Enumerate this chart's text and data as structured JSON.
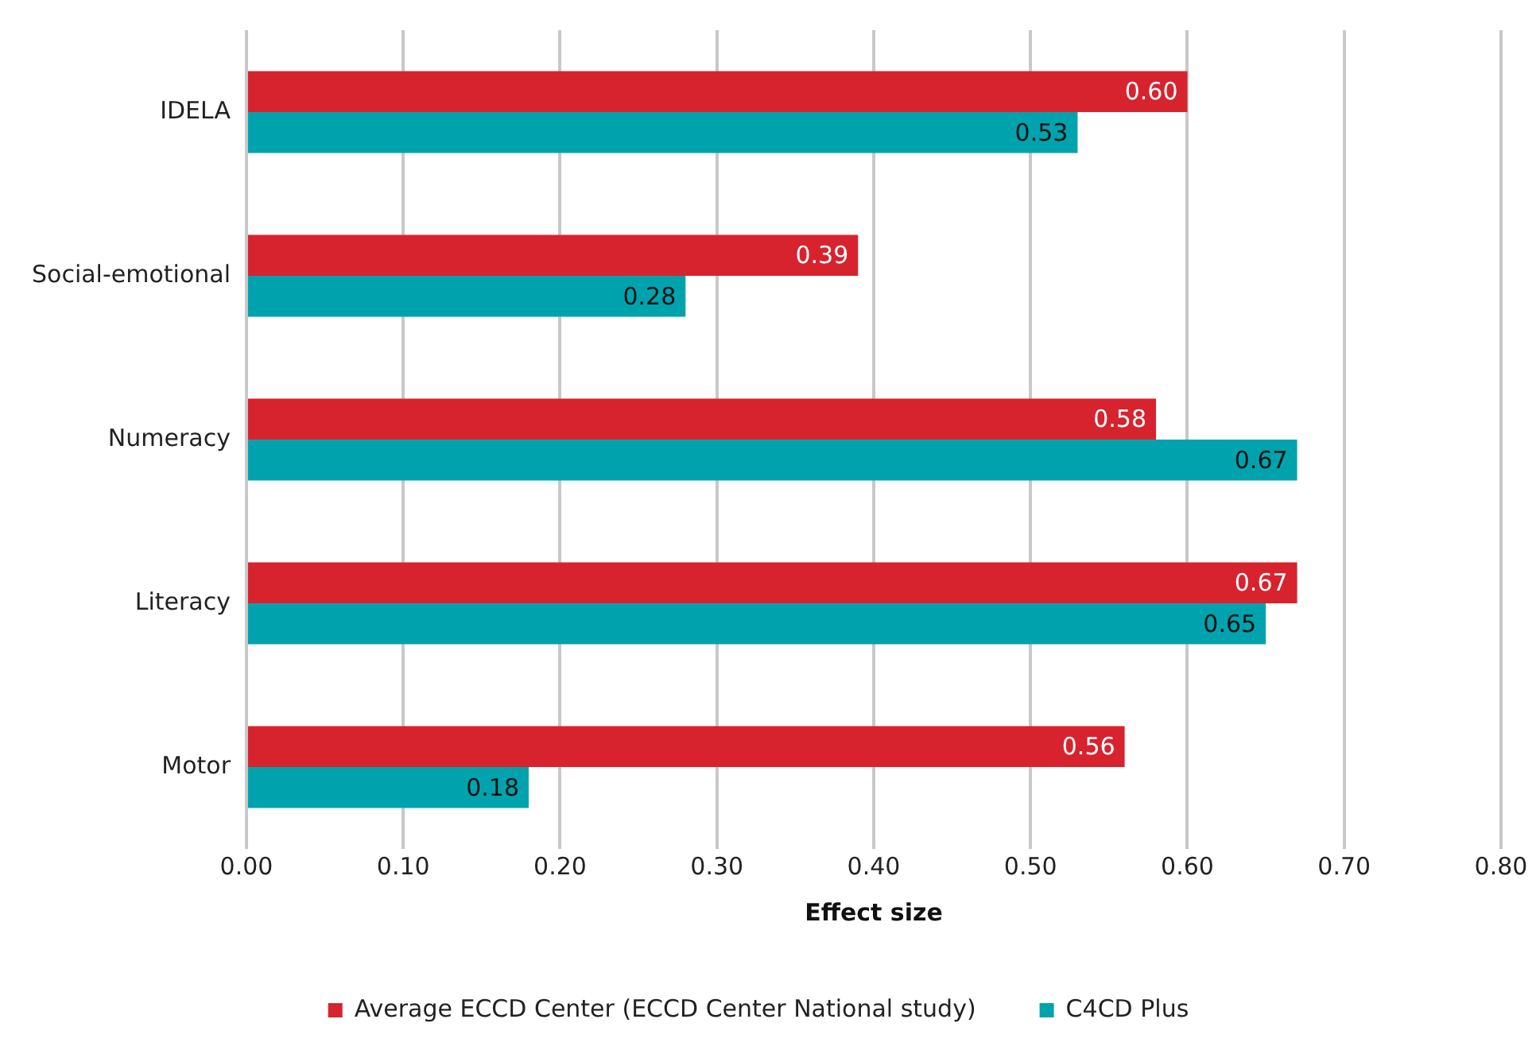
{
  "chart_data": {
    "type": "bar",
    "orientation": "horizontal",
    "xlabel": "Effect size",
    "categories": [
      "IDELA",
      "Social-emotional",
      "Numeracy",
      "Literacy",
      "Motor"
    ],
    "series": [
      {
        "name": "Average ECCD Center (ECCD Center National study)",
        "color": "#d7232e",
        "values": [
          0.6,
          0.39,
          0.58,
          0.67,
          0.56
        ],
        "value_labels": [
          "0.60",
          "0.39",
          "0.58",
          "0.67",
          "0.56"
        ]
      },
      {
        "name": "C4CD Plus",
        "color": "#00a3ad",
        "values": [
          0.53,
          0.28,
          0.67,
          0.65,
          0.18
        ],
        "value_labels": [
          "0.53",
          "0.28",
          "0.67",
          "0.65",
          "0.18"
        ]
      }
    ],
    "xlim": [
      0,
      0.8
    ],
    "xticks": [
      {
        "value": 0,
        "label": "0.00"
      },
      {
        "value": 0.1,
        "label": "0.10"
      },
      {
        "value": 0.2,
        "label": "0.20"
      },
      {
        "value": 0.3,
        "label": "0.30"
      },
      {
        "value": 0.4,
        "label": "0.40"
      },
      {
        "value": 0.5,
        "label": "0.50"
      },
      {
        "value": 0.6,
        "label": "0.60"
      },
      {
        "value": 0.7,
        "label": "0.70"
      },
      {
        "value": 0.8,
        "label": "0.80"
      }
    ],
    "grid": "x",
    "legend": "bottom"
  }
}
